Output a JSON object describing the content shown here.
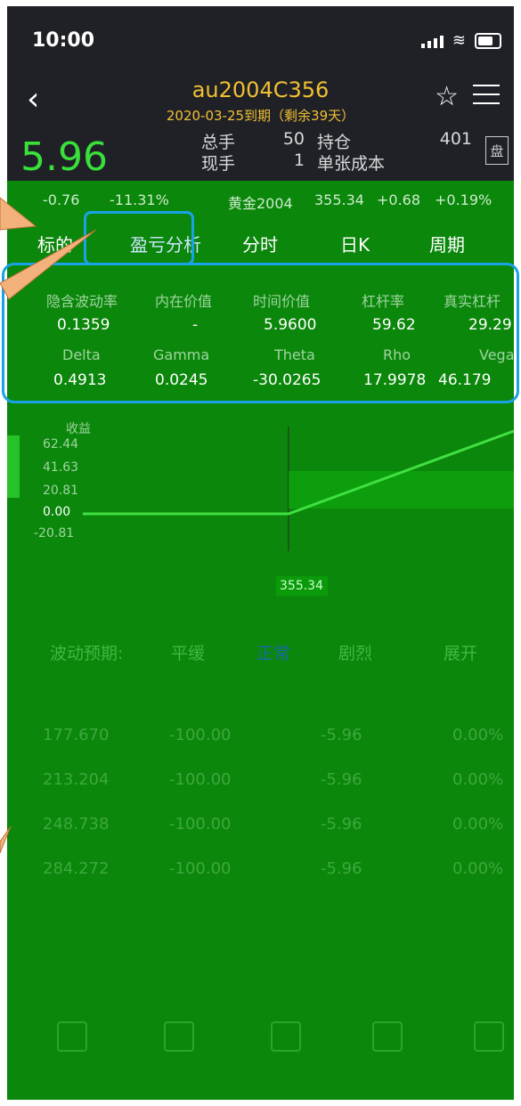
{
  "status": {
    "time": "10:00"
  },
  "header": {
    "title": "au2004C356",
    "subtitle": "2020-03-25到期（剩余39天）"
  },
  "quote": {
    "price": "5.96",
    "total_label": "总手",
    "total_value": "50",
    "position_label": "持仓",
    "position_value": "401",
    "current_label": "现手",
    "current_value": "1",
    "unit_cost_label": "单张成本",
    "pan_label": "盘"
  },
  "sub_quote": {
    "change": "-0.76",
    "change_pct": "-11.31%",
    "underlying": "黄金2004",
    "underlying_price": "355.34",
    "underlying_change": "+0.68",
    "underlying_change_pct": "+0.19%"
  },
  "tabs": [
    {
      "label": "标的"
    },
    {
      "label": "盈亏分析"
    },
    {
      "label": "分时"
    },
    {
      "label": "日K"
    },
    {
      "label": "周期"
    }
  ],
  "metrics": {
    "row1_labels": [
      "隐含波动率",
      "内在价值",
      "时间价值",
      "杠杆率",
      "真实杠杆"
    ],
    "row1_values": [
      "0.1359",
      "-",
      "5.9600",
      "59.62",
      "29.29"
    ],
    "row2_labels": [
      "Delta",
      "Gamma",
      "Theta",
      "Rho",
      "Vega"
    ],
    "row2_values": [
      "0.4913",
      "0.0245",
      "-30.0265",
      "17.9978",
      "46.179"
    ]
  },
  "chart": {
    "y_label": "收益",
    "y_ticks": [
      "62.44",
      "41.63",
      "20.81",
      "0.00",
      "-20.81"
    ],
    "x_marker": "355.34"
  },
  "chart_data": {
    "type": "line",
    "title": "",
    "ylabel": "收益",
    "x": [
      300,
      356,
      420
    ],
    "series": [
      {
        "values": [
          0.0,
          0.0,
          62.44
        ]
      }
    ],
    "y_ticks": [
      62.44,
      41.63,
      20.81,
      0.0,
      -20.81
    ],
    "x_marker": 355.34
  },
  "wave": {
    "label": "波动预期:",
    "options": [
      "平缓",
      "正常",
      "剧烈"
    ],
    "expand": "展开"
  },
  "table_rows": [
    [
      "177.670",
      "-100.00",
      "-5.96",
      "0.00%"
    ],
    [
      "213.204",
      "-100.00",
      "-5.96",
      "0.00%"
    ],
    [
      "248.738",
      "-100.00",
      "-5.96",
      "0.00%"
    ],
    [
      "284.272",
      "-100.00",
      "-5.96",
      "0.00%"
    ]
  ],
  "colors": {
    "accent_blue": "#1aa2e6",
    "price_green": "#39e03a",
    "title_gold": "#f2c033",
    "overlay_green": "#0b870b"
  }
}
